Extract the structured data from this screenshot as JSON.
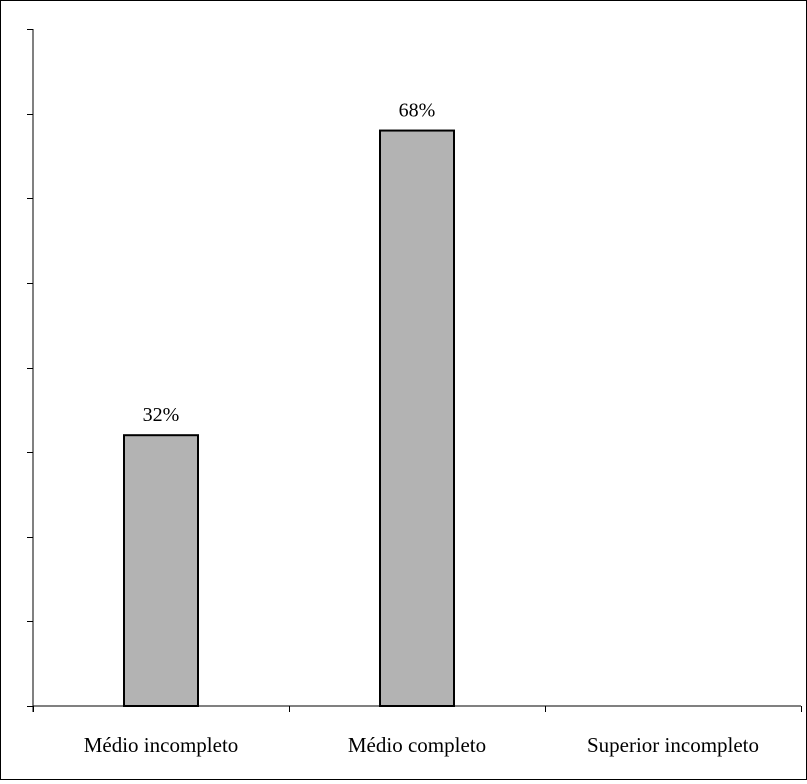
{
  "chart_data": {
    "type": "bar",
    "categories": [
      "Médio incompleto",
      "Médio completo",
      "Superior incompleto"
    ],
    "values": [
      32,
      68,
      0
    ],
    "data_labels": [
      "32%",
      "68%",
      ""
    ],
    "ylim": [
      0,
      80
    ],
    "y_tick_step": 10,
    "y_tick_labels_visible": false,
    "grid": false,
    "legend": "none",
    "colors": {
      "bar_fill": "#b3b3b3",
      "bar_stroke": "#000000",
      "axis": "#000000",
      "background": "#ffffff"
    }
  }
}
